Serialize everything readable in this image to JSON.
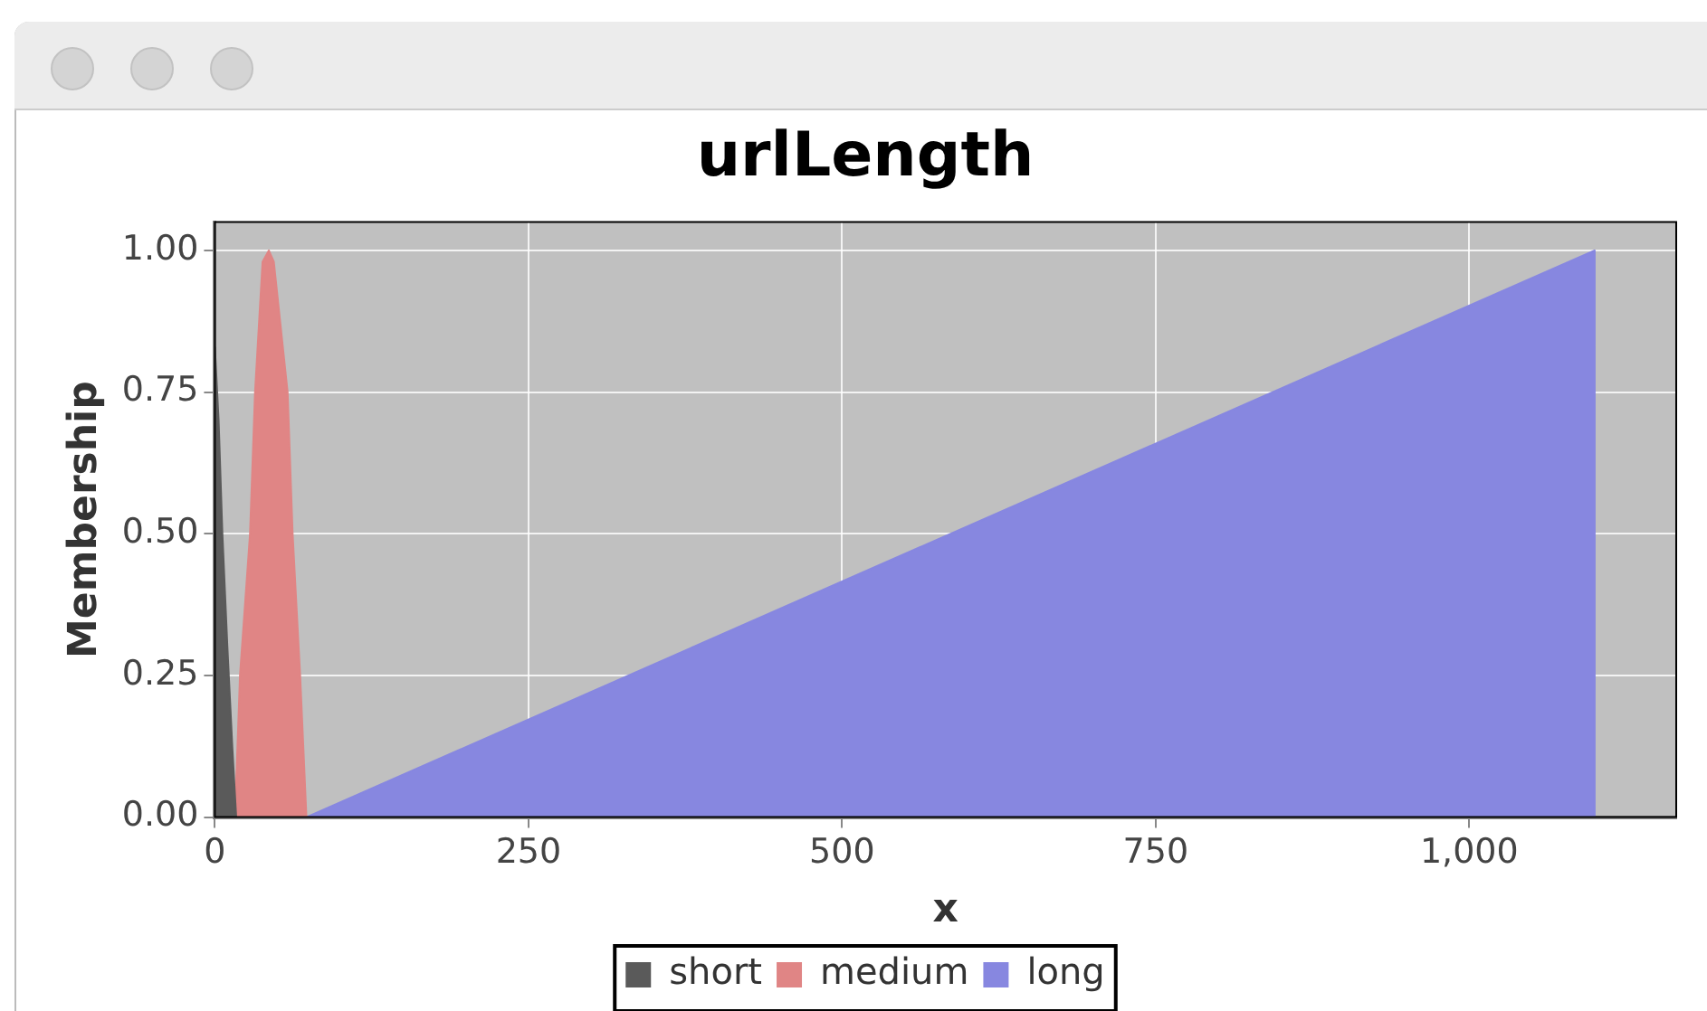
{
  "chart_data": {
    "type": "area",
    "title": "urlLength",
    "xlabel": "x",
    "ylabel": "Membership",
    "xlim": [
      0,
      1165
    ],
    "xticks": [
      0,
      250,
      500,
      750,
      {
        "value": 1000,
        "label": "1,000"
      }
    ],
    "ylim": [
      0,
      1.05
    ],
    "yticks": [
      {
        "value": 0,
        "label": "0.00"
      },
      {
        "value": 0.25,
        "label": "0.25"
      },
      {
        "value": 0.5,
        "label": "0.50"
      },
      {
        "value": 0.75,
        "label": "0.75"
      },
      {
        "value": 1,
        "label": "1.00"
      }
    ],
    "grid": true,
    "legend": "bottom",
    "marker": "none",
    "series": [
      {
        "name": "short",
        "color": "#5a5a5a",
        "x": [
          0,
          3,
          6,
          10,
          14,
          17
        ],
        "values": [
          0.83,
          0.7,
          0.5,
          0.3,
          0.12,
          0
        ]
      },
      {
        "name": "medium",
        "color": "#e08585",
        "x": [
          16,
          20,
          28,
          32,
          38,
          43,
          47,
          58,
          62,
          68,
          73
        ],
        "values": [
          0,
          0.25,
          0.5,
          0.75,
          0.98,
          1,
          0.98,
          0.75,
          0.5,
          0.25,
          0
        ]
      },
      {
        "name": "long",
        "color": "#8787e0",
        "x": [
          73,
          1100,
          1100
        ],
        "values": [
          0,
          1,
          0
        ]
      }
    ]
  }
}
